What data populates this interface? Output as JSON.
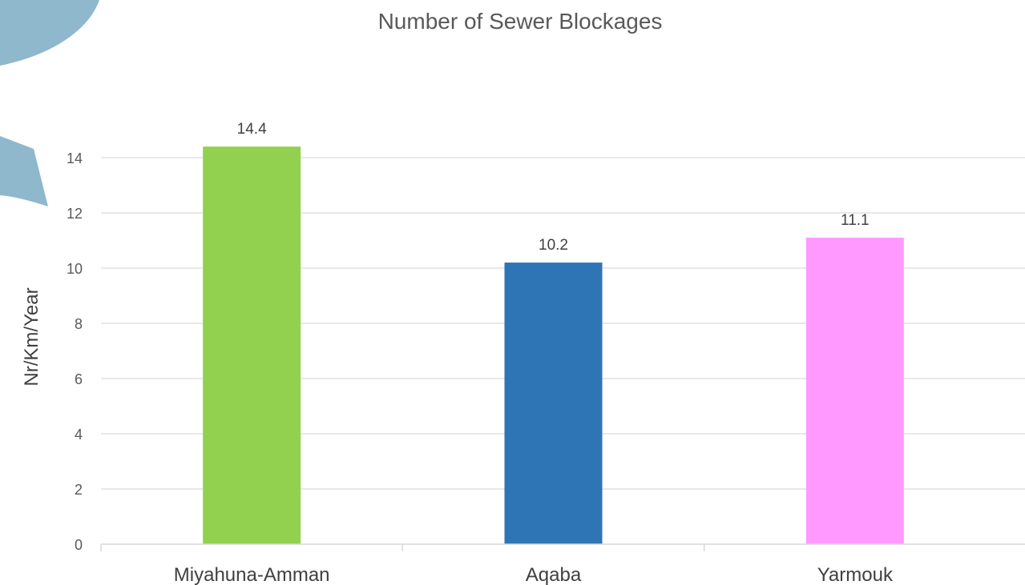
{
  "chart_data": {
    "type": "bar",
    "title": "Number of Sewer Blockages",
    "xlabel": "",
    "ylabel": "Nr/Km/Year",
    "categories": [
      "Miyahuna-Amman",
      "Aqaba",
      "Yarmouk"
    ],
    "values": [
      14.4,
      10.2,
      11.1
    ],
    "data_labels": [
      "14.4",
      "10.2",
      "11.1"
    ],
    "bar_colors": [
      "#92d050",
      "#2e75b6",
      "#ff99ff"
    ],
    "ylim": [
      0,
      14
    ],
    "yticks": [
      0,
      2,
      4,
      6,
      8,
      10,
      12,
      14
    ],
    "ytick_labels": [
      "0",
      "2",
      "4",
      "6",
      "8",
      "10",
      "12",
      "14"
    ],
    "grid": true,
    "legend": "none"
  },
  "decoration": {
    "shape_color": "#8fb8cc"
  }
}
